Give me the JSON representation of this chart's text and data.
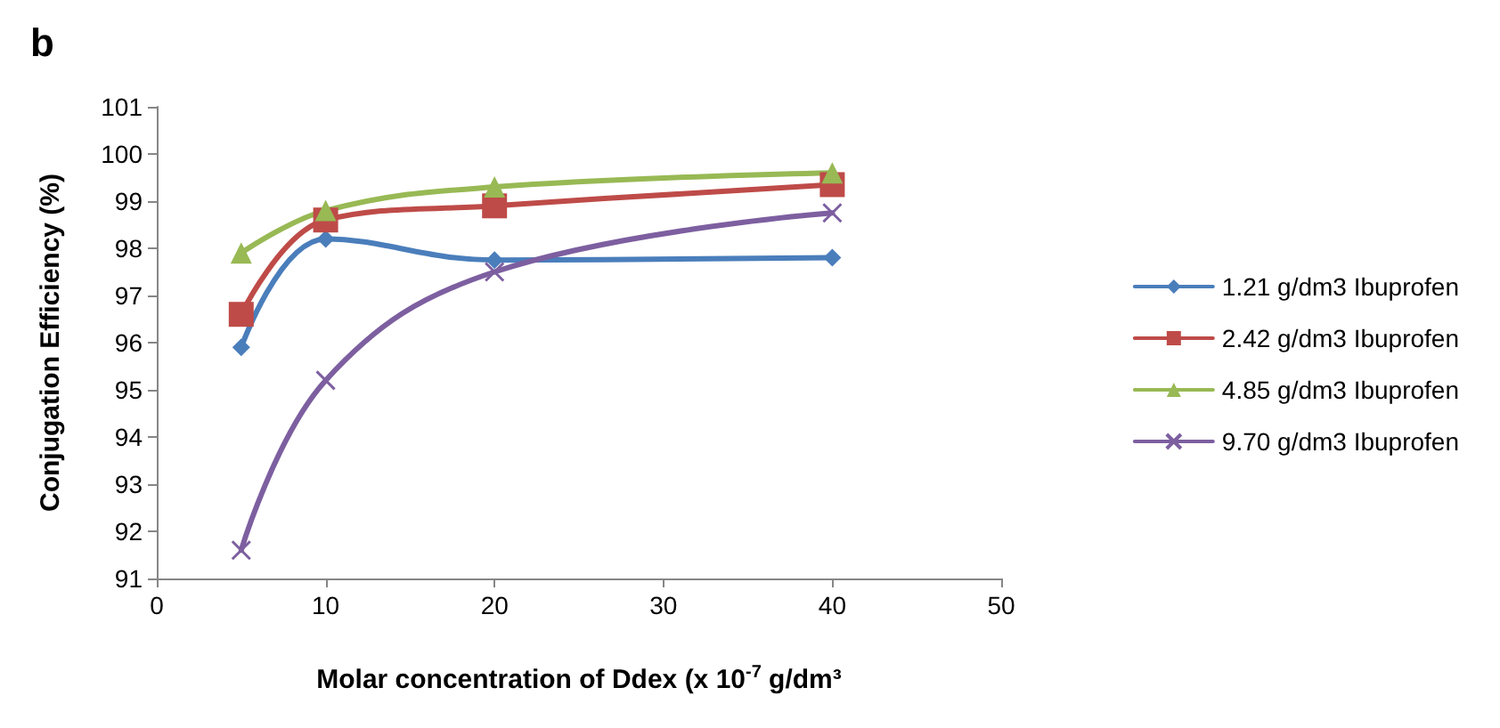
{
  "chart_data": {
    "type": "line",
    "title": "b",
    "xlabel": "Molar concentration of Ddex (x 10$^{-7}$ g/dm³",
    "ylabel": "Conjugation Efficiency (%)",
    "x": [
      5,
      10,
      20,
      40
    ],
    "series": [
      {
        "name": "1.21 g/dm3 Ibuprofen",
        "color": "#4a7ebb",
        "marker": "diamond",
        "values": [
          95.9,
          98.2,
          97.75,
          97.8
        ]
      },
      {
        "name": "2.42 g/dm3 Ibuprofen",
        "color": "#be4b48",
        "marker": "square",
        "values": [
          96.6,
          98.6,
          98.9,
          99.35
        ]
      },
      {
        "name": "4.85 g/dm3 Ibuprofen",
        "color": "#98b954",
        "marker": "triangle",
        "values": [
          97.9,
          98.8,
          99.3,
          99.6
        ]
      },
      {
        "name": "9.70 g/dm3 Ibuprofen",
        "color": "#7d5fa0",
        "marker": "cross",
        "values": [
          91.6,
          95.2,
          97.5,
          98.75
        ]
      }
    ],
    "xlim": [
      0,
      50
    ],
    "xticks": [
      0,
      10,
      20,
      30,
      40,
      50
    ],
    "ylim": [
      91,
      101
    ],
    "yticks": [
      91,
      92,
      93,
      94,
      95,
      96,
      97,
      98,
      99,
      100,
      101
    ],
    "grid": false,
    "legend": "right",
    "line_style": "solid"
  }
}
